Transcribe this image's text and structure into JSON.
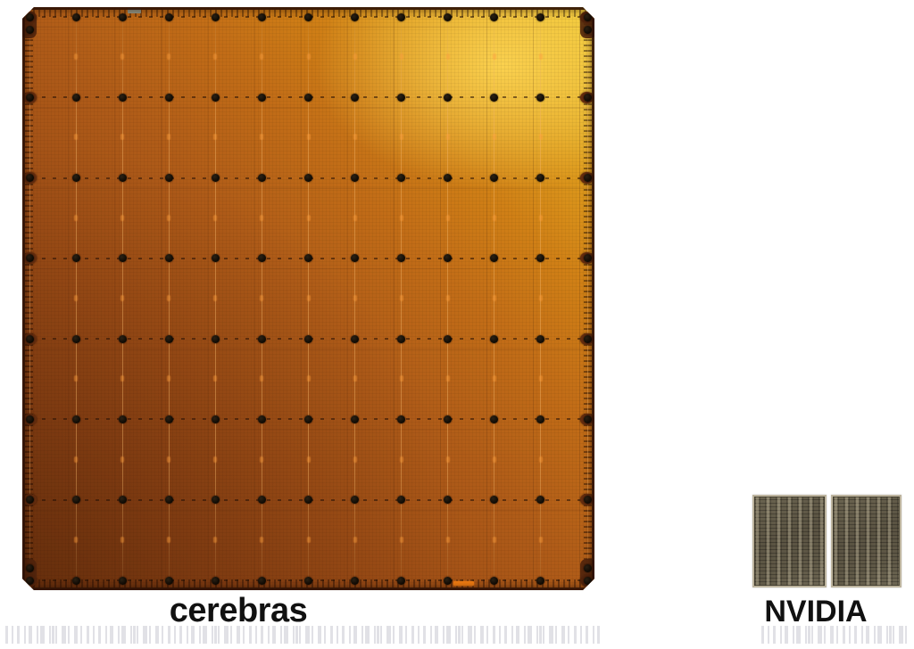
{
  "cerebras": {
    "label": "cerebras",
    "wafer": {
      "grid": {
        "rows": 8,
        "cols": 13
      },
      "corner_dot_pairs": 4
    }
  },
  "nvidia": {
    "label": "NVIDIA",
    "chip_count": 2
  },
  "colors": {
    "wafer-dark": "#7b3a10",
    "wafer-mid": "#b05c18",
    "wafer-bright": "#eec935",
    "dot": "#0d0903",
    "tab": "#642d0f",
    "glyph": "#ff9f3c",
    "fiducial-gray": "#8e9383",
    "fiducial-orange": "#f07c12",
    "chip-base": "#5a5342",
    "chip-border": "#bdb49e",
    "label-text": "#111111",
    "strip-bar": "#c9c9d2"
  }
}
